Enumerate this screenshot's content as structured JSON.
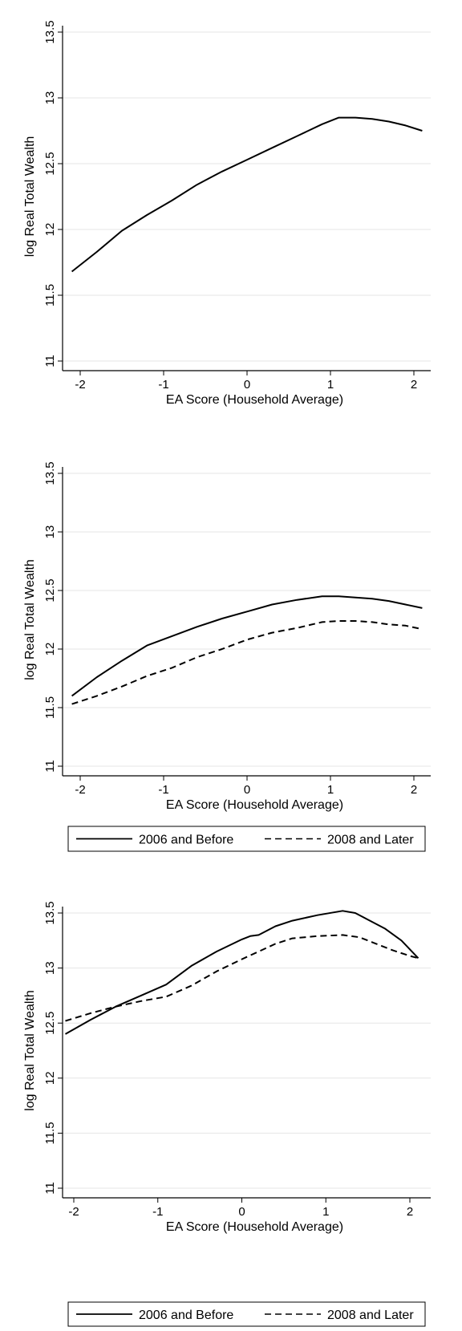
{
  "chart_data": [
    {
      "type": "line",
      "xlabel": "EA Score (Household Average)",
      "ylabel": "log Real Total Wealth",
      "xlim": [
        -2.2,
        2.2
      ],
      "ylim": [
        10.95,
        13.55
      ],
      "xticks": [
        "-2",
        "-1",
        "0",
        "1",
        "2"
      ],
      "yticks": [
        "11",
        "11.5",
        "12",
        "12.5",
        "13",
        "13.5"
      ],
      "grid": true,
      "legend": null,
      "series": [
        {
          "style": "solid",
          "x": [
            -2.1,
            -1.8,
            -1.5,
            -1.2,
            -0.9,
            -0.6,
            -0.3,
            0.0,
            0.3,
            0.6,
            0.9,
            1.1,
            1.3,
            1.5,
            1.7,
            1.9,
            2.1
          ],
          "y": [
            11.68,
            11.83,
            11.99,
            12.11,
            12.22,
            12.34,
            12.44,
            12.53,
            12.62,
            12.71,
            12.8,
            12.85,
            12.85,
            12.84,
            12.82,
            12.79,
            12.75
          ]
        }
      ]
    },
    {
      "type": "line",
      "xlabel": "EA Score (Household Average)",
      "ylabel": "log Real Total Wealth",
      "xlim": [
        -2.2,
        2.2
      ],
      "ylim": [
        10.95,
        13.55
      ],
      "xticks": [
        "-2",
        "-1",
        "0",
        "1",
        "2"
      ],
      "yticks": [
        "11",
        "11.5",
        "12",
        "12.5",
        "13",
        "13.5"
      ],
      "grid": true,
      "legend": "bottom",
      "series": [
        {
          "name": "2006 and Before",
          "style": "solid",
          "x": [
            -2.1,
            -1.8,
            -1.5,
            -1.2,
            -0.9,
            -0.6,
            -0.3,
            0.0,
            0.3,
            0.6,
            0.9,
            1.1,
            1.3,
            1.5,
            1.7,
            1.9,
            2.1
          ],
          "y": [
            11.6,
            11.76,
            11.9,
            12.03,
            12.11,
            12.19,
            12.26,
            12.32,
            12.38,
            12.42,
            12.45,
            12.45,
            12.44,
            12.43,
            12.41,
            12.38,
            12.35
          ]
        },
        {
          "name": "2008 and Later",
          "style": "dashed",
          "x": [
            -2.1,
            -1.8,
            -1.5,
            -1.2,
            -0.9,
            -0.6,
            -0.3,
            0.0,
            0.3,
            0.6,
            0.9,
            1.1,
            1.3,
            1.5,
            1.7,
            1.9,
            2.1
          ],
          "y": [
            11.53,
            11.6,
            11.68,
            11.77,
            11.84,
            11.93,
            12.0,
            12.08,
            12.14,
            12.18,
            12.23,
            12.24,
            12.24,
            12.23,
            12.21,
            12.2,
            12.17
          ]
        }
      ]
    },
    {
      "type": "line",
      "xlabel": "EA Score (Household Average)",
      "ylabel": "log Real Total Wealth",
      "xlim": [
        -2.2,
        2.2
      ],
      "ylim": [
        10.95,
        13.55
      ],
      "xticks": [
        "-2",
        "-1",
        "0",
        "1",
        "2"
      ],
      "yticks": [
        "11",
        "11.5",
        "12",
        "12.5",
        "13",
        "13.5"
      ],
      "grid": true,
      "legend": "bottom",
      "series": [
        {
          "name": "2006 and Before",
          "style": "solid",
          "x": [
            -2.1,
            -1.8,
            -1.5,
            -1.2,
            -0.9,
            -0.6,
            -0.3,
            0.0,
            0.1,
            0.2,
            0.4,
            0.6,
            0.9,
            1.2,
            1.35,
            1.5,
            1.7,
            1.9,
            2.1
          ],
          "y": [
            12.4,
            12.53,
            12.65,
            12.75,
            12.85,
            13.02,
            13.15,
            13.26,
            13.29,
            13.3,
            13.38,
            13.43,
            13.48,
            13.52,
            13.5,
            13.44,
            13.36,
            13.25,
            13.09
          ]
        },
        {
          "name": "2008 and Later",
          "style": "dashed",
          "x": [
            -2.1,
            -1.8,
            -1.5,
            -1.2,
            -0.9,
            -0.6,
            -0.3,
            0.0,
            0.2,
            0.4,
            0.6,
            0.9,
            1.2,
            1.4,
            1.6,
            1.8,
            2.0,
            2.1
          ],
          "y": [
            12.52,
            12.59,
            12.65,
            12.7,
            12.74,
            12.84,
            12.97,
            13.08,
            13.15,
            13.22,
            13.27,
            13.29,
            13.3,
            13.28,
            13.22,
            13.16,
            13.11,
            13.09
          ]
        }
      ]
    }
  ]
}
